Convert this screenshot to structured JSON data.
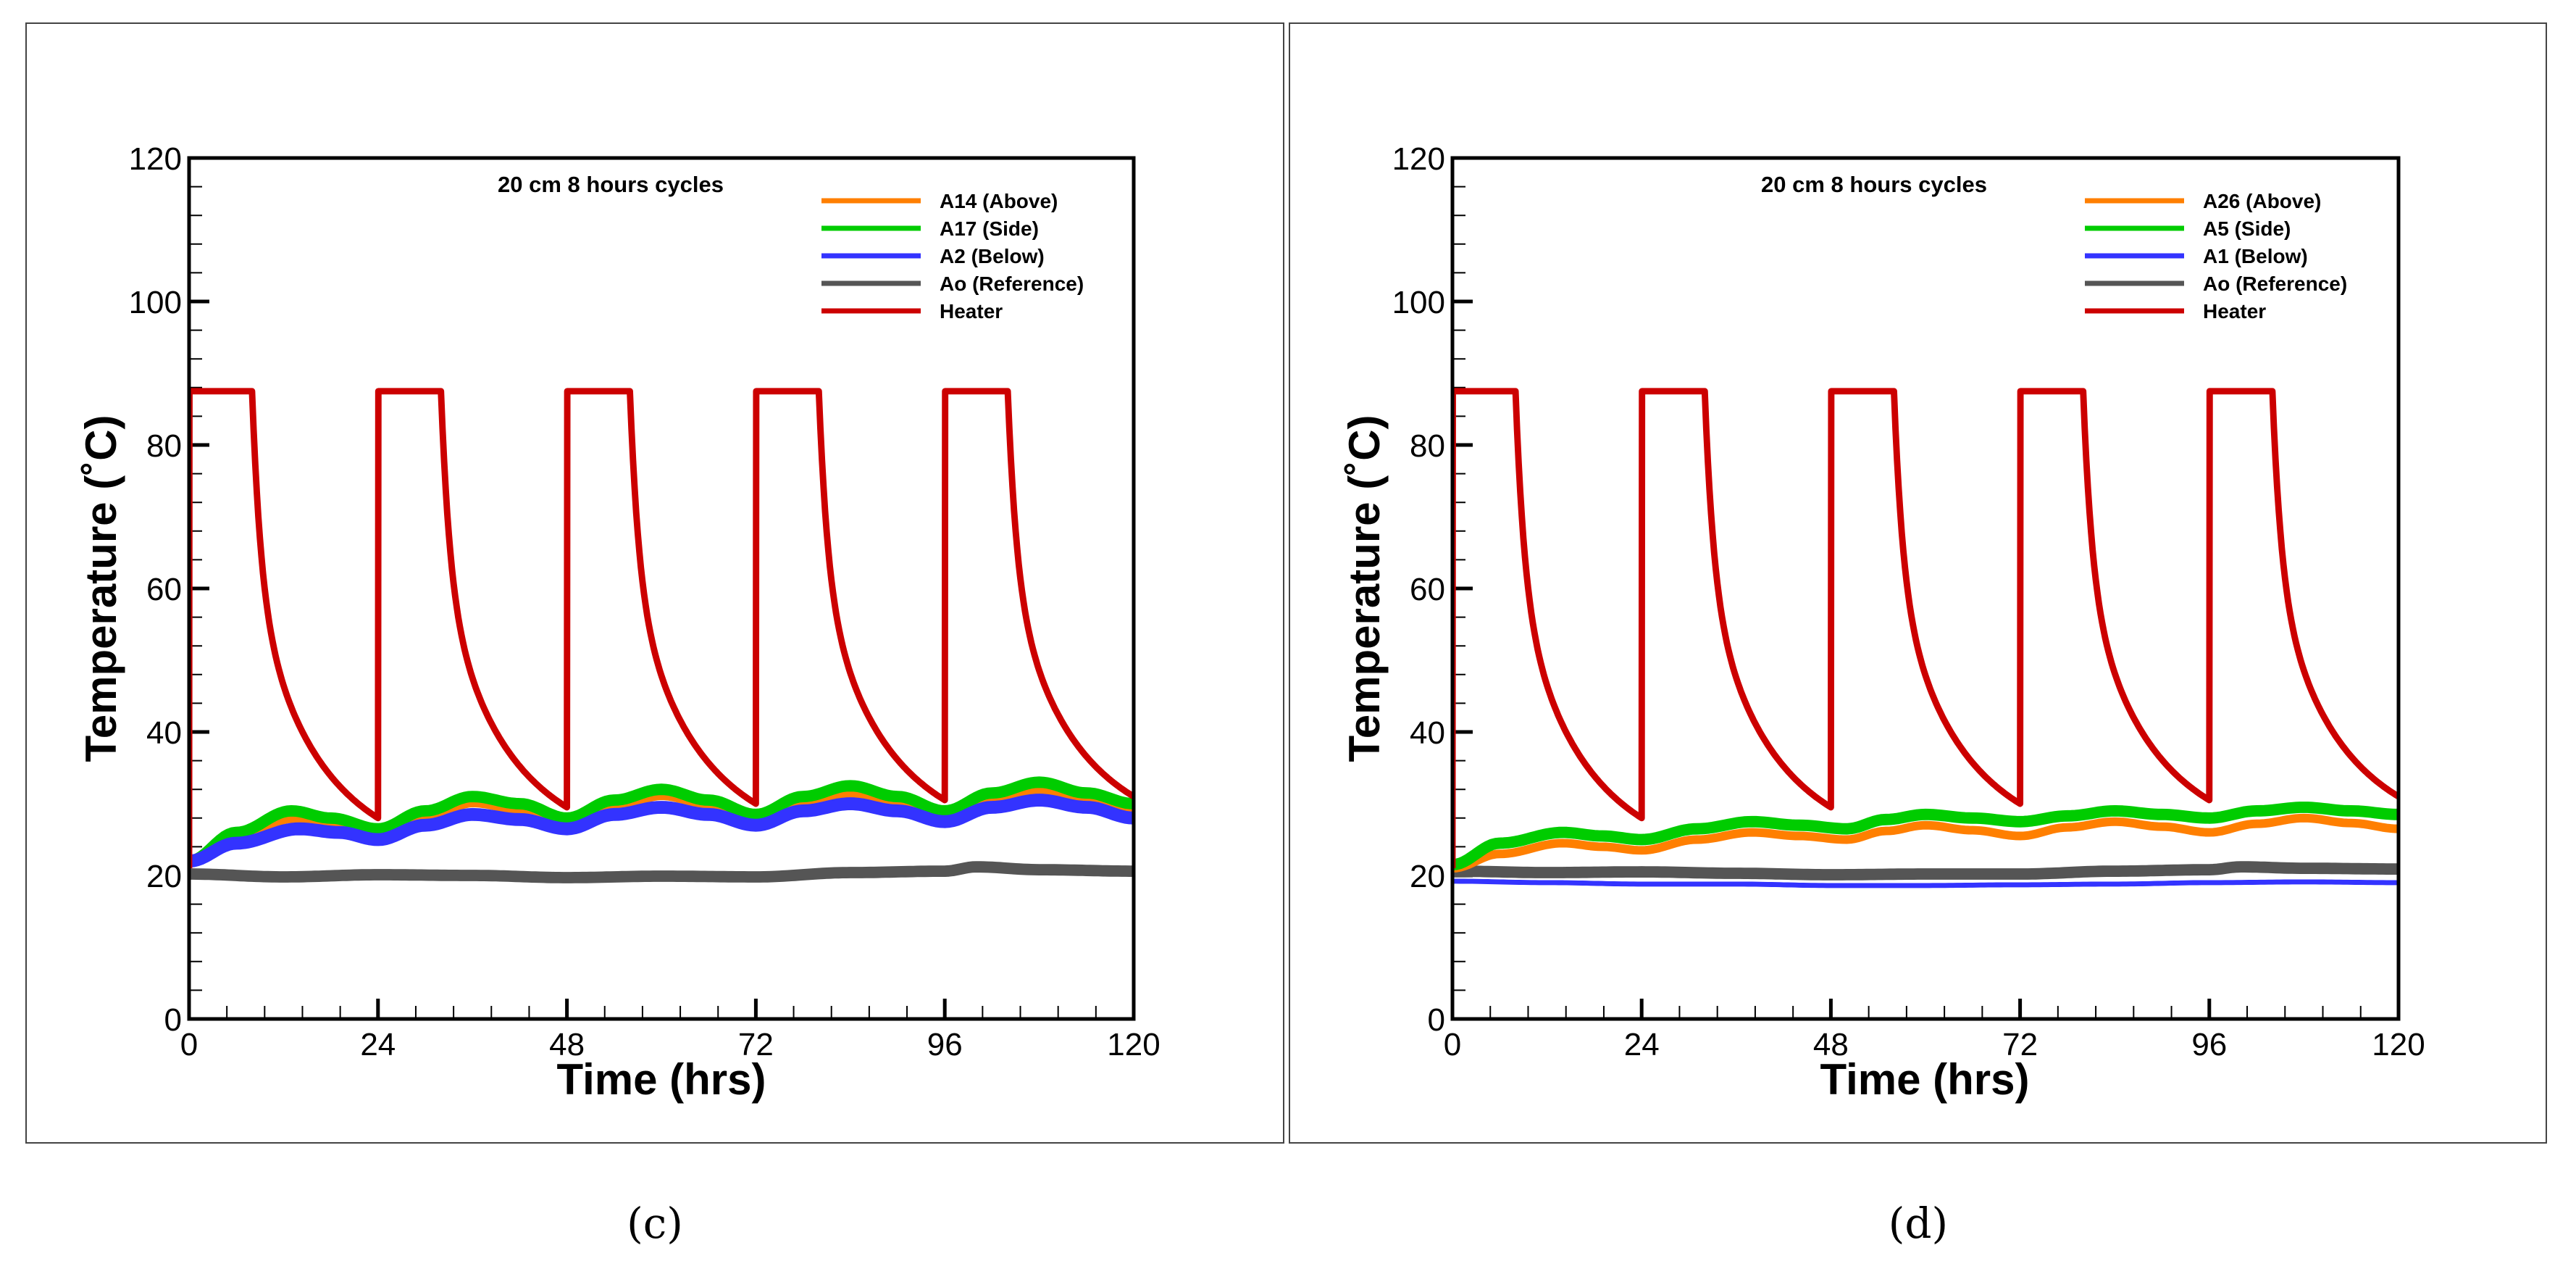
{
  "chart_data": [
    {
      "type": "line",
      "panel_label": "(c)",
      "caption_letter": "c",
      "title": "20 cm 8 hours cycles",
      "xlabel": "Time (hrs)",
      "ylabel": "Temperature (˚C)",
      "xlim": [
        0,
        120
      ],
      "ylim": [
        0,
        120
      ],
      "xticks": [
        0,
        24,
        48,
        72,
        96,
        120
      ],
      "yticks": [
        0,
        20,
        40,
        60,
        80,
        100,
        120
      ],
      "legend_position": "top-right",
      "series": [
        {
          "name": "A14 (Above)",
          "color": "#ff7f00",
          "band": 1.4,
          "x": [
            0,
            6,
            13,
            18,
            24,
            30,
            36,
            42,
            48,
            54,
            60,
            66,
            72,
            78,
            84,
            90,
            96,
            102,
            108,
            114,
            120
          ],
          "y": [
            22,
            25,
            28,
            27.5,
            26,
            28,
            30.2,
            29.3,
            27.5,
            29.5,
            31.2,
            30,
            28,
            30,
            31.5,
            30.5,
            28.5,
            30.5,
            32,
            31,
            29.5
          ]
        },
        {
          "name": "A17 (Side)",
          "color": "#00cc00",
          "band": 1.6,
          "x": [
            0,
            6,
            13,
            18,
            24,
            30,
            36,
            42,
            48,
            54,
            60,
            66,
            72,
            78,
            84,
            90,
            96,
            102,
            108,
            114,
            120
          ],
          "y": [
            22,
            26,
            29,
            28,
            26.5,
            29,
            31,
            30,
            28,
            30.5,
            32,
            30.5,
            28.5,
            31,
            32.5,
            31,
            29,
            31.5,
            33,
            31.5,
            30
          ]
        },
        {
          "name": "A2 (Below)",
          "color": "#3333ff",
          "band": 1.8,
          "x": [
            0,
            6,
            14,
            19,
            24,
            30,
            36,
            42,
            48,
            54,
            60,
            66,
            72,
            78,
            84,
            90,
            96,
            102,
            108,
            114,
            120
          ],
          "y": [
            22,
            24.5,
            26.5,
            26,
            25,
            27,
            28.5,
            27.8,
            26.5,
            28.5,
            29.5,
            28.5,
            27,
            29,
            30,
            29,
            27.5,
            29.5,
            30.5,
            29.5,
            28
          ]
        },
        {
          "name": "Ao (Reference)",
          "color": "#555555",
          "band": 1.6,
          "x": [
            0,
            12,
            24,
            36,
            48,
            60,
            72,
            84,
            96,
            100,
            108,
            120
          ],
          "y": [
            20.2,
            19.8,
            20.1,
            20,
            19.7,
            19.9,
            19.8,
            20.4,
            20.6,
            21.2,
            20.8,
            20.6
          ]
        },
        {
          "name": "Heater",
          "color": "#cc0000",
          "band": 0.9,
          "cycle_start_temp": 21,
          "on_temp": 87.5,
          "on_hours": 8,
          "period_hours": 24,
          "end_temps": [
            28,
            29.5,
            30,
            30.5,
            31
          ]
        }
      ]
    },
    {
      "type": "line",
      "panel_label": "(d)",
      "caption_letter": "d",
      "title": "20 cm 8 hours cycles",
      "xlabel": "Time (hrs)",
      "ylabel": "Temperature (˚C)",
      "xlim": [
        0,
        120
      ],
      "ylim": [
        0,
        120
      ],
      "xticks": [
        0,
        24,
        48,
        72,
        96,
        120
      ],
      "yticks": [
        0,
        20,
        40,
        60,
        80,
        100,
        120
      ],
      "legend_position": "top-right",
      "series": [
        {
          "name": "A26 (Above)",
          "color": "#ff7f00",
          "band": 1.2,
          "x": [
            0,
            6,
            14,
            19,
            24,
            31,
            38,
            44,
            50,
            55,
            60,
            66,
            72,
            78,
            84,
            90,
            96,
            102,
            108,
            114,
            120
          ],
          "y": [
            21,
            23,
            24.5,
            24,
            23.5,
            25,
            26,
            25.5,
            25,
            26.2,
            27,
            26.3,
            25.5,
            26.7,
            27.5,
            26.8,
            26,
            27.2,
            28,
            27.3,
            26.5
          ]
        },
        {
          "name": "A5 (Side)",
          "color": "#00cc00",
          "band": 1.6,
          "x": [
            0,
            6,
            14,
            19,
            24,
            31,
            38,
            44,
            50,
            55,
            60,
            66,
            72,
            78,
            84,
            90,
            96,
            102,
            108,
            114,
            120
          ],
          "y": [
            21.5,
            24.5,
            26,
            25.5,
            25,
            26.5,
            27.5,
            27,
            26.5,
            27.8,
            28.5,
            28,
            27.5,
            28.3,
            29,
            28.5,
            28,
            29,
            29.5,
            29,
            28.5
          ]
        },
        {
          "name": "A1 (Below)",
          "color": "#3333ff",
          "band": 0.7,
          "x": [
            0,
            12,
            24,
            36,
            48,
            60,
            72,
            84,
            96,
            108,
            120
          ],
          "y": [
            19.2,
            19,
            18.8,
            18.8,
            18.6,
            18.6,
            18.7,
            18.8,
            19,
            19.1,
            19
          ]
        },
        {
          "name": "Ao (Reference)",
          "color": "#555555",
          "band": 1.6,
          "x": [
            0,
            12,
            24,
            36,
            48,
            60,
            72,
            84,
            96,
            100,
            108,
            120
          ],
          "y": [
            20.6,
            20.4,
            20.5,
            20.3,
            20.1,
            20.2,
            20.2,
            20.6,
            20.8,
            21.2,
            21,
            20.9
          ]
        },
        {
          "name": "Heater",
          "color": "#cc0000",
          "band": 0.9,
          "cycle_start_temp": 21,
          "on_temp": 87.5,
          "on_hours": 8,
          "period_hours": 24,
          "end_temps": [
            28,
            29.5,
            30,
            30.5,
            31
          ]
        }
      ]
    }
  ]
}
